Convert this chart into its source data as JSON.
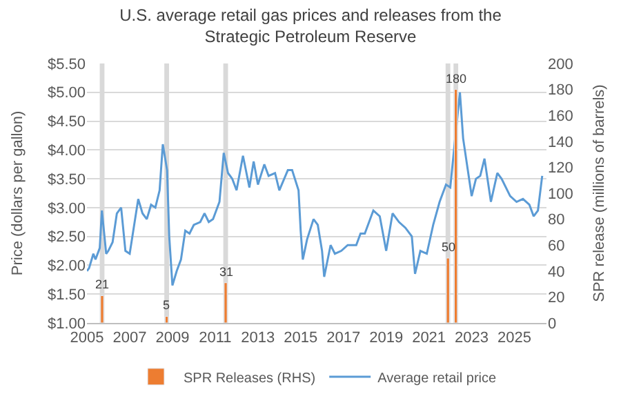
{
  "chart_data": {
    "type": "line",
    "title": "U.S. average retail gas prices and releases from the Strategic Petroleum Reserve",
    "ylabel": "Price (dollars per gallon)",
    "y2label": "SPR release (millions of barrels)",
    "xlim": [
      2005,
      2026.5
    ],
    "xticks": [
      2005,
      2007,
      2009,
      2011,
      2013,
      2015,
      2017,
      2019,
      2021,
      2023,
      2025
    ],
    "ylim": [
      1,
      5.5
    ],
    "yticks": [
      {
        "value": 1,
        "label": "$1.00"
      },
      {
        "value": 1.5,
        "label": "$1.50"
      },
      {
        "value": 2,
        "label": "$2.00"
      },
      {
        "value": 2.5,
        "label": "$2.50"
      },
      {
        "value": 3,
        "label": "$3.00"
      },
      {
        "value": 3.5,
        "label": "$3.50"
      },
      {
        "value": 4,
        "label": "$4.00"
      },
      {
        "value": 4.5,
        "label": "$4.50"
      },
      {
        "value": 5,
        "label": "$5.00"
      },
      {
        "value": 5.5,
        "label": "$5.50"
      }
    ],
    "y2lim": [
      0,
      200
    ],
    "y2ticks": [
      0,
      20,
      40,
      60,
      80,
      100,
      120,
      140,
      160,
      180,
      200
    ],
    "grid": "y",
    "legend": "bottom",
    "bands": [
      {
        "axis": "x",
        "from": 2005.6,
        "to": 2005.82,
        "color": "#d9d9d9"
      },
      {
        "axis": "x",
        "from": 2008.62,
        "to": 2008.84,
        "color": "#d9d9d9"
      },
      {
        "axis": "x",
        "from": 2011.38,
        "to": 2011.6,
        "color": "#d9d9d9"
      },
      {
        "axis": "x",
        "from": 2021.78,
        "to": 2022.0,
        "color": "#d9d9d9"
      },
      {
        "axis": "x",
        "from": 2022.15,
        "to": 2022.37,
        "color": "#d9d9d9"
      }
    ],
    "series": [
      {
        "name": "SPR Releases (RHS)",
        "type": "bar",
        "axis": "y2",
        "color": "#ed7d31",
        "data_labels": true,
        "x": [
          2005.71,
          2008.73,
          2011.49,
          2021.89,
          2022.26
        ],
        "values": [
          21,
          5,
          31,
          50,
          180
        ]
      },
      {
        "name": "Average retail price",
        "color": "#5b9bd5",
        "x": [
          2005.0,
          2005.1,
          2005.3,
          2005.4,
          2005.6,
          2005.7,
          2005.9,
          2006.0,
          2006.2,
          2006.4,
          2006.6,
          2006.8,
          2007.0,
          2007.4,
          2007.6,
          2007.8,
          2008.0,
          2008.2,
          2008.4,
          2008.55,
          2008.75,
          2008.85,
          2009.0,
          2009.2,
          2009.4,
          2009.6,
          2009.8,
          2010.0,
          2010.3,
          2010.5,
          2010.7,
          2010.9,
          2011.2,
          2011.4,
          2011.6,
          2011.8,
          2012.0,
          2012.3,
          2012.6,
          2012.8,
          2013.0,
          2013.3,
          2013.5,
          2013.8,
          2014.0,
          2014.4,
          2014.6,
          2014.9,
          2015.0,
          2015.1,
          2015.3,
          2015.6,
          2015.8,
          2016.0,
          2016.1,
          2016.4,
          2016.6,
          2016.9,
          2017.2,
          2017.6,
          2017.8,
          2018.0,
          2018.4,
          2018.7,
          2019.0,
          2019.3,
          2019.6,
          2019.9,
          2020.2,
          2020.35,
          2020.6,
          2020.9,
          2021.2,
          2021.5,
          2021.8,
          2022.0,
          2022.2,
          2022.45,
          2022.6,
          2022.8,
          2023.0,
          2023.2,
          2023.4,
          2023.6,
          2023.9,
          2024.2,
          2024.4,
          2024.8,
          2025.1,
          2025.4,
          2025.7,
          2025.9,
          2026.1,
          2026.3
        ],
        "values": [
          1.9,
          1.95,
          2.2,
          2.1,
          2.3,
          2.95,
          2.2,
          2.25,
          2.4,
          2.9,
          3.0,
          2.25,
          2.2,
          3.15,
          2.9,
          2.8,
          3.05,
          3.0,
          3.3,
          4.1,
          3.65,
          2.5,
          1.65,
          1.9,
          2.1,
          2.6,
          2.55,
          2.7,
          2.75,
          2.9,
          2.75,
          2.8,
          3.1,
          3.95,
          3.6,
          3.5,
          3.3,
          3.9,
          3.35,
          3.8,
          3.4,
          3.75,
          3.55,
          3.6,
          3.3,
          3.65,
          3.65,
          3.3,
          2.6,
          2.1,
          2.45,
          2.8,
          2.7,
          2.25,
          1.8,
          2.35,
          2.2,
          2.25,
          2.35,
          2.35,
          2.55,
          2.55,
          2.95,
          2.85,
          2.25,
          2.9,
          2.75,
          2.65,
          2.5,
          1.85,
          2.25,
          2.2,
          2.7,
          3.1,
          3.4,
          3.35,
          4.1,
          5.0,
          4.2,
          3.7,
          3.2,
          3.5,
          3.55,
          3.85,
          3.1,
          3.6,
          3.5,
          3.2,
          3.1,
          3.15,
          3.05,
          2.85,
          2.95,
          3.55
        ]
      }
    ]
  }
}
